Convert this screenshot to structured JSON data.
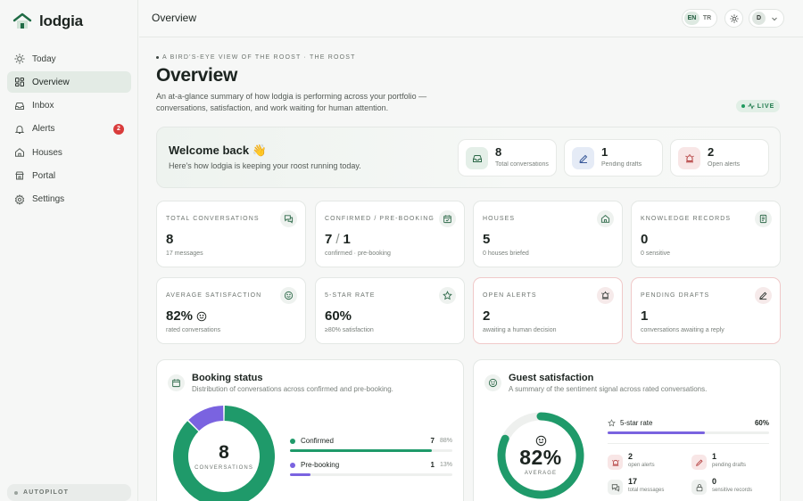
{
  "brand": {
    "name": "lodgia"
  },
  "nav": [
    {
      "label": "Today",
      "icon": "sun-icon"
    },
    {
      "label": "Overview",
      "icon": "grid-icon",
      "active": true
    },
    {
      "label": "Inbox",
      "icon": "inbox-icon"
    },
    {
      "label": "Alerts",
      "icon": "bell-icon",
      "badge": "2"
    },
    {
      "label": "Houses",
      "icon": "house-icon"
    },
    {
      "label": "Portal",
      "icon": "portal-icon"
    },
    {
      "label": "Settings",
      "icon": "gear-icon"
    }
  ],
  "autopilot": {
    "label": "AUTOPILOT"
  },
  "topbar": {
    "title": "Overview",
    "lang_en": "EN",
    "lang_tr": "TR",
    "user_initial": "D"
  },
  "header": {
    "eyebrow": "A BIRD'S-EYE VIEW OF THE ROOST · THE ROOST",
    "title": "Overview",
    "description": "An at-a-glance summary of how lodgia is performing across your portfolio — conversations, satisfaction, and work waiting for human attention.",
    "live_label": "LIVE"
  },
  "welcome": {
    "title": "Welcome back 👋",
    "subtitle": "Here's how lodgia is keeping your roost running today.",
    "minis": [
      {
        "value": "8",
        "label": "Total conversations",
        "icon": "inbox-icon"
      },
      {
        "value": "1",
        "label": "Pending drafts",
        "icon": "pencil-icon"
      },
      {
        "value": "2",
        "label": "Open alerts",
        "icon": "alarm-icon"
      }
    ]
  },
  "stats": [
    {
      "label": "TOTAL CONVERSATIONS",
      "value": "8",
      "sub": "17 messages",
      "icon": "chat-icon"
    },
    {
      "label": "CONFIRMED / PRE-BOOKING",
      "value_a": "7",
      "value_b": "1",
      "sub": "confirmed · pre-booking",
      "icon": "calendar-icon"
    },
    {
      "label": "HOUSES",
      "value": "5",
      "sub": "0 houses briefed",
      "icon": "house-icon"
    },
    {
      "label": "KNOWLEDGE RECORDS",
      "value": "0",
      "sub": "0 sensitive",
      "icon": "book-icon"
    },
    {
      "label": "AVERAGE SATISFACTION",
      "value": "82%",
      "sub": "rated conversations",
      "icon": "smile-icon"
    },
    {
      "label": "5-STAR RATE",
      "value": "60%",
      "sub": "≥80% satisfaction",
      "icon": "star-icon"
    },
    {
      "label": "OPEN ALERTS",
      "value": "2",
      "sub": "awaiting a human decision",
      "icon": "alarm-icon"
    },
    {
      "label": "PENDING DRAFTS",
      "value": "1",
      "sub": "conversations awaiting a reply",
      "icon": "pencil-icon"
    }
  ],
  "booking": {
    "title": "Booking status",
    "subtitle": "Distribution of conversations across confirmed and pre-booking.",
    "center_value": "8",
    "center_label": "CONVERSATIONS",
    "rows": [
      {
        "name": "Confirmed",
        "count": "7",
        "pct": "88%",
        "fraction": 0.875,
        "color": "#1f9a6a"
      },
      {
        "name": "Pre-booking",
        "count": "1",
        "pct": "13%",
        "fraction": 0.125,
        "color": "#7a63e0"
      }
    ]
  },
  "satisfaction": {
    "title": "Guest satisfaction",
    "subtitle": "A summary of the sentiment signal across rated conversations.",
    "gauge_value": "82%",
    "gauge_fraction": 0.82,
    "gauge_label": "AVERAGE",
    "five_star_label": "5-star rate",
    "five_star_value": "60%",
    "five_star_fraction": 0.6,
    "stats": [
      {
        "value": "2",
        "label": "open alerts",
        "icon": "alarm-icon"
      },
      {
        "value": "1",
        "label": "pending drafts",
        "icon": "pencil-icon"
      },
      {
        "value": "17",
        "label": "total messages",
        "icon": "chat-icon"
      },
      {
        "value": "0",
        "label": "sensitive records",
        "icon": "lock-icon"
      }
    ]
  },
  "colors": {
    "accent": "#1f9a6a",
    "purple": "#7a63e0",
    "alert": "#d93b3b"
  }
}
